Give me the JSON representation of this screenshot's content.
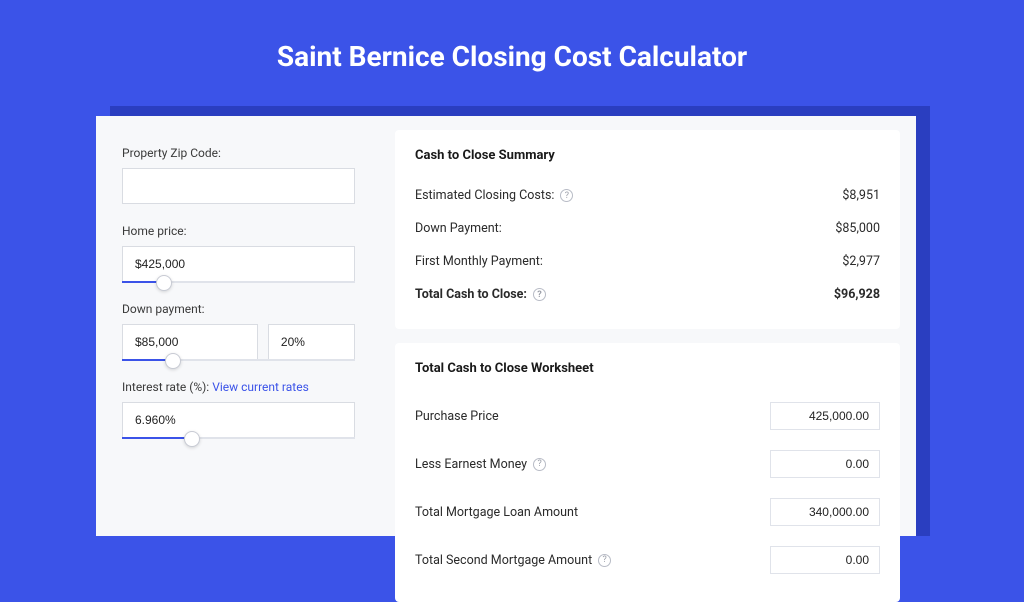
{
  "page": {
    "title": "Saint Bernice Closing Cost Calculator",
    "background_color": "#3b53e8",
    "shadow_color": "#2a3ec0",
    "panel_bg": "#f7f8fa",
    "card_bg": "#ffffff"
  },
  "inputs": {
    "zip": {
      "label": "Property Zip Code:",
      "value": ""
    },
    "home_price": {
      "label": "Home price:",
      "value": "$425,000",
      "slider_pct": 18
    },
    "down_payment": {
      "label": "Down payment:",
      "amount": "$85,000",
      "pct": "20%",
      "slider_pct": 22
    },
    "interest": {
      "label": "Interest rate (%):",
      "link_text": "View current rates",
      "value": "6.960%",
      "slider_pct": 30
    }
  },
  "summary": {
    "title": "Cash to Close Summary",
    "rows": [
      {
        "label": "Estimated Closing Costs:",
        "help": true,
        "value": "$8,951",
        "bold": false
      },
      {
        "label": "Down Payment:",
        "help": false,
        "value": "$85,000",
        "bold": false
      },
      {
        "label": "First Monthly Payment:",
        "help": false,
        "value": "$2,977",
        "bold": false
      },
      {
        "label": "Total Cash to Close:",
        "help": true,
        "value": "$96,928",
        "bold": true
      }
    ]
  },
  "worksheet": {
    "title": "Total Cash to Close Worksheet",
    "rows": [
      {
        "label": "Purchase Price",
        "help": false,
        "value": "425,000.00"
      },
      {
        "label": "Less Earnest Money",
        "help": true,
        "value": "0.00"
      },
      {
        "label": "Total Mortgage Loan Amount",
        "help": false,
        "value": "340,000.00"
      },
      {
        "label": "Total Second Mortgage Amount",
        "help": true,
        "value": "0.00"
      }
    ]
  }
}
